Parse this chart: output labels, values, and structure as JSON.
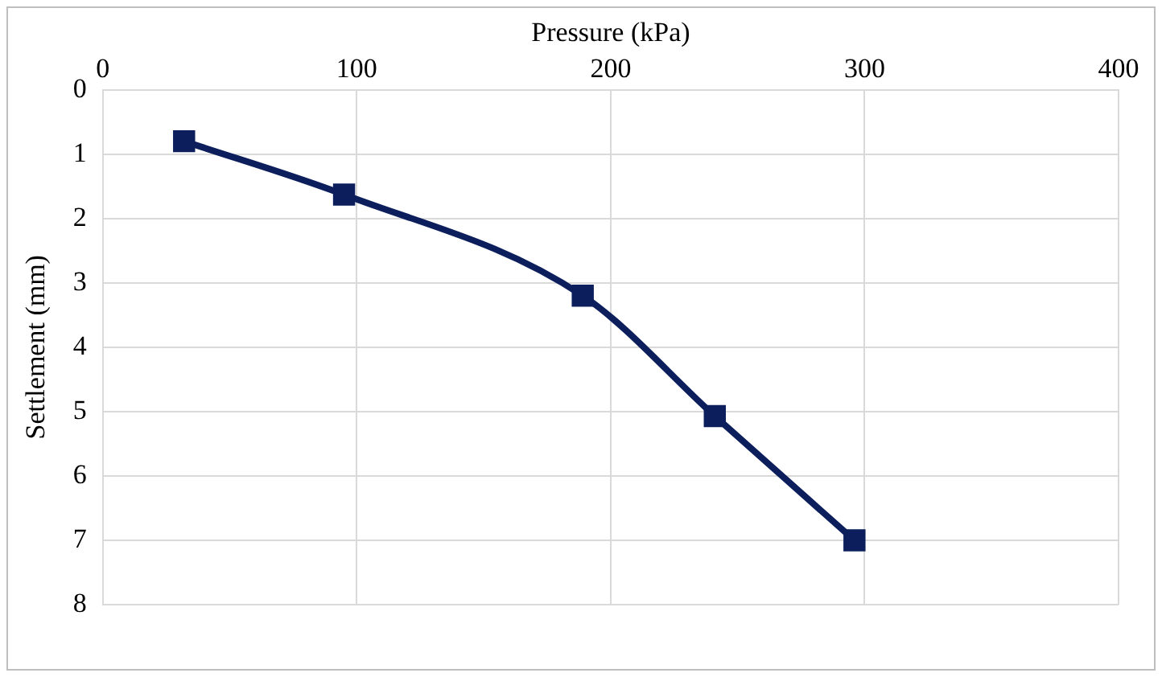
{
  "chart_data": {
    "type": "line",
    "xlabel": "Pressure (kPa)",
    "ylabel": "Settlement (mm)",
    "x": [
      32,
      95,
      189,
      241,
      296
    ],
    "series": [
      {
        "color": "#0c1f5c",
        "values": [
          0.8,
          1.63,
          3.2,
          5.07,
          7.0
        ]
      }
    ],
    "xlim": [
      0,
      400
    ],
    "xticks": [
      0,
      100,
      200,
      300,
      400
    ],
    "ylim": [
      8,
      0
    ],
    "yticks": [
      0,
      1,
      2,
      3,
      4,
      5,
      6,
      7,
      8
    ],
    "grid": true,
    "marker": "square",
    "line_style": "solid"
  }
}
